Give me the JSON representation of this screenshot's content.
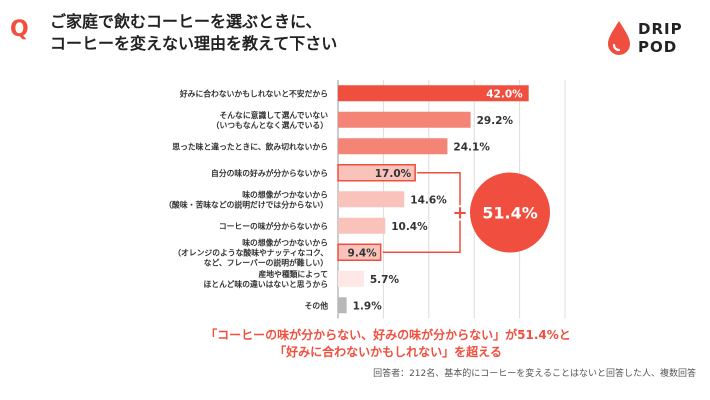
{
  "header": {
    "q_mark": "Q",
    "title_line1": "ご家庭で飲むコーヒーを選ぶときに、",
    "title_line2": "コーヒーを変えない理由を教えて下さい"
  },
  "logo": {
    "line1": "DRIP",
    "line2": "POD"
  },
  "chart_data": {
    "type": "bar",
    "orientation": "horizontal",
    "unit": "%",
    "categories": [
      [
        "好みに合わないかもしれないと不安だから"
      ],
      [
        "そんなに意識して選んでいない",
        "（いつもなんとなく選んでいる）"
      ],
      [
        "思った味と違ったときに、飲み切れないから"
      ],
      [
        "自分の味の好みが分からないから"
      ],
      [
        "味の想像がつかないから",
        "（酸味・苦味などの説明だけでは分からない）"
      ],
      [
        "コーヒーの味が分からないから"
      ],
      [
        "味の想像がつかないから",
        "（オレンジのような酸味やナッティなコク、",
        "など、フレーバーの説明が難しい）"
      ],
      [
        "産地や種類によって",
        "ほとんど味の違いはないと思うから"
      ],
      [
        "その他"
      ]
    ],
    "values": [
      42.0,
      29.2,
      24.1,
      17.0,
      14.6,
      10.4,
      9.4,
      5.7,
      1.9
    ],
    "value_labels": [
      "42.0%",
      "29.2%",
      "24.1%",
      "17.0%",
      "14.6%",
      "10.4%",
      "9.4%",
      "5.7%",
      "1.9%"
    ],
    "bar_colors": [
      "#f04e3e",
      "#f48476",
      "#f48476",
      "#f9c3bc",
      "#f9c3bc",
      "#f9c3bc",
      "#f9c3bc",
      "#fde8e5",
      "#b8b8b8"
    ],
    "highlighted_indices": [
      3,
      6
    ],
    "combined": {
      "plus": "+",
      "value": "51.4%"
    },
    "xlim": [
      0,
      50
    ],
    "grid": true
  },
  "colors": {
    "accent": "#f04e3e"
  },
  "note": {
    "line1": "「コーヒーの味が分からない、好みの味が分からない」が51.4%と",
    "line2": "「好みに合わないかもしれない」を超える"
  },
  "footnote": "回答者：212名、基本的にコーヒーを変えることはないと回答した人、複数回答"
}
